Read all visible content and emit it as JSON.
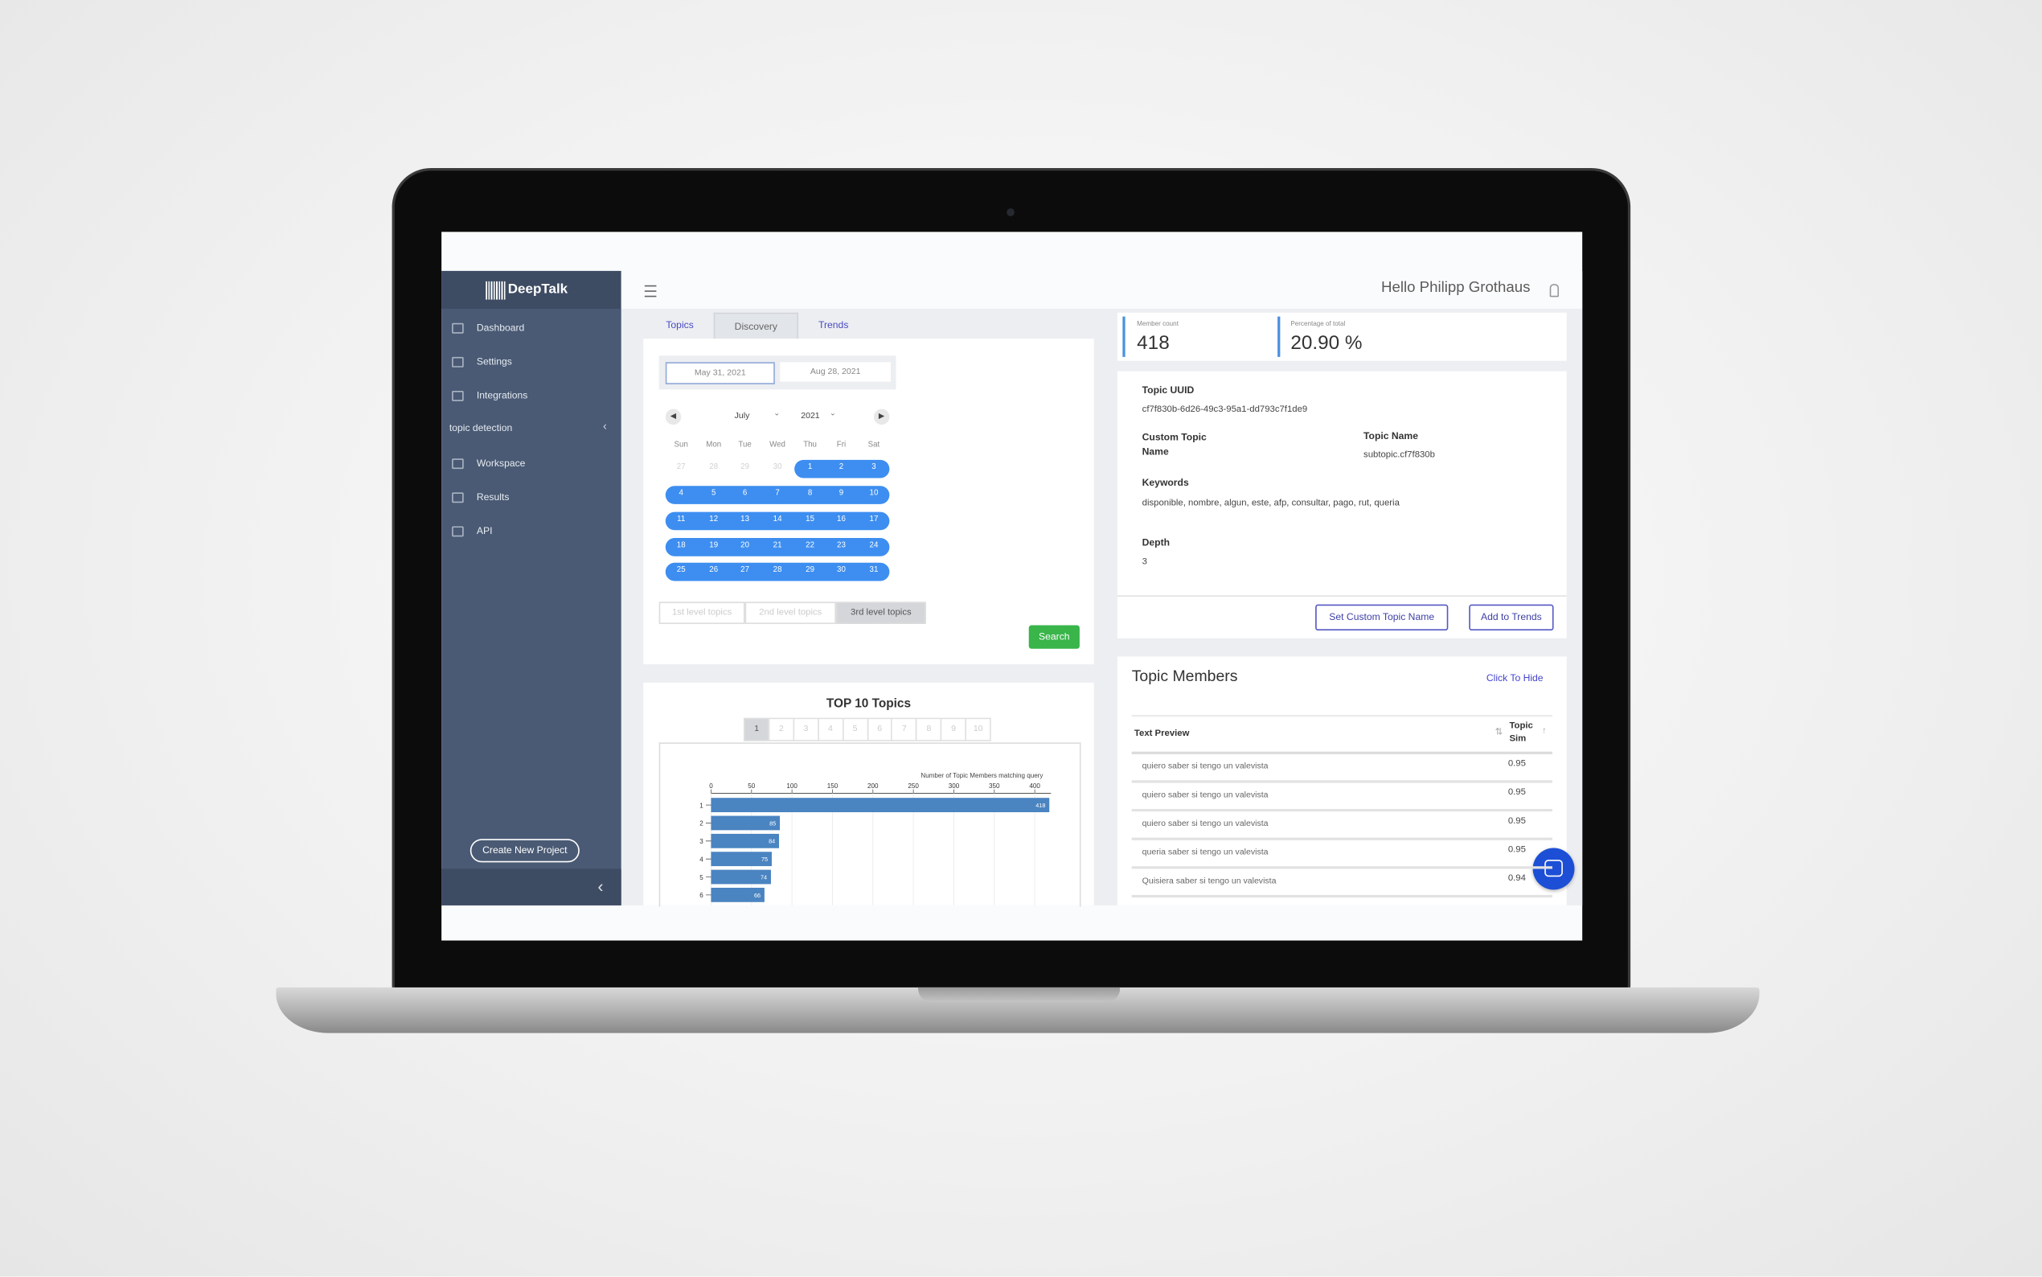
{
  "sidebar": {
    "brand": "DeepTalk",
    "items": [
      "Dashboard",
      "Settings",
      "Integrations"
    ],
    "section": "topic detection",
    "section_items": [
      "Workspace",
      "Results",
      "API"
    ],
    "create_button": "Create New Project"
  },
  "header": {
    "greeting": "Hello Philipp Grothaus"
  },
  "tabs": [
    "Topics",
    "Discovery",
    "Trends"
  ],
  "date_range": {
    "start": "May 31, 2021",
    "end": "Aug 28, 2021"
  },
  "calendar": {
    "month": "July",
    "year": "2021",
    "weekdays": [
      "Sun",
      "Mon",
      "Tue",
      "Wed",
      "Thu",
      "Fri",
      "Sat"
    ],
    "weeks": [
      [
        "27",
        "28",
        "29",
        "30",
        "1",
        "2",
        "3"
      ],
      [
        "4",
        "5",
        "6",
        "7",
        "8",
        "9",
        "10"
      ],
      [
        "11",
        "12",
        "13",
        "14",
        "15",
        "16",
        "17"
      ],
      [
        "18",
        "19",
        "20",
        "21",
        "22",
        "23",
        "24"
      ],
      [
        "25",
        "26",
        "27",
        "28",
        "29",
        "30",
        "31"
      ]
    ]
  },
  "levels": [
    "1st level topics",
    "2nd level topics",
    "3rd level topics"
  ],
  "search_button": "Search",
  "top_topics": {
    "title": "TOP 10 Topics",
    "pages": [
      "1",
      "2",
      "3",
      "4",
      "5",
      "6",
      "7",
      "8",
      "9",
      "10"
    ],
    "chart_data": {
      "type": "bar",
      "orientation": "horizontal",
      "x_label": "Number of Topic Members matching query",
      "categories": [
        "1",
        "2",
        "3",
        "4",
        "5",
        "6"
      ],
      "values": [
        418,
        85,
        84,
        75,
        74,
        66
      ],
      "color": "#4a84c1",
      "xlim": [
        0,
        420
      ],
      "xticks": [
        0,
        50,
        100,
        150,
        200,
        250,
        300,
        350,
        400
      ],
      "grid": true
    }
  },
  "stats": {
    "member_count_label": "Member count",
    "member_count": "418",
    "percentage_label": "Percentage of total",
    "percentage": "20.90 %"
  },
  "topic": {
    "uuid_label": "Topic UUID",
    "uuid": "cf7f830b-6d26-49c3-95a1-dd793c7f1de9",
    "custom_name_label": "Custom Topic Name",
    "name_label": "Topic Name",
    "name": "subtopic.cf7f830b",
    "keywords_label": "Keywords",
    "keywords": "disponible, nombre, algun, este, afp, consultar, pago, rut, queria",
    "depth_label": "Depth",
    "depth": "3",
    "buttons": [
      "Set Custom Topic Name",
      "Add to Trends"
    ]
  },
  "members": {
    "title": "Topic Members",
    "toggle": "Click To Hide",
    "columns": [
      "Text Preview",
      "Topic Sim"
    ],
    "rows": [
      [
        "quiero saber si tengo un valevista",
        "0.95"
      ],
      [
        "quiero saber si tengo un valevista",
        "0.95"
      ],
      [
        "quiero saber si tengo un valevista",
        "0.95"
      ],
      [
        "queria saber si tengo un valevista",
        "0.95"
      ],
      [
        "Quisiera saber si tengo un valevista",
        "0.94"
      ]
    ]
  }
}
